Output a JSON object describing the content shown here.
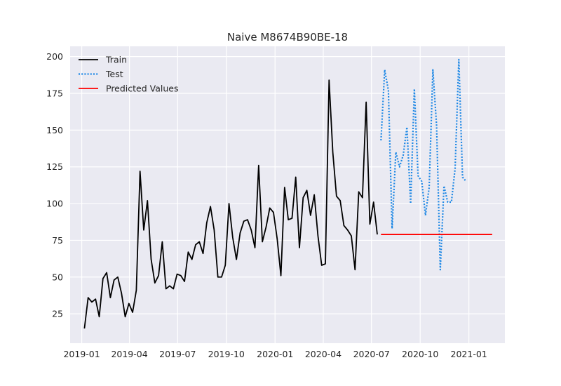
{
  "chart_data": {
    "type": "line",
    "title": "Naive M8674B90BE-18",
    "xlabel": "",
    "ylabel": "",
    "grid": true,
    "legend_position": "top-left",
    "xlim": [
      "2018-12-10",
      "2021-03-10"
    ],
    "ylim": [
      5,
      207
    ],
    "x_ticks": [
      "2019-01-01",
      "2019-04-01",
      "2019-07-01",
      "2019-10-01",
      "2020-01-01",
      "2020-04-01",
      "2020-07-01",
      "2020-10-01",
      "2021-01-01"
    ],
    "x_tick_labels": [
      "2019-01",
      "2019-04",
      "2019-07",
      "2019-10",
      "2020-01",
      "2020-04",
      "2020-07",
      "2020-10",
      "2021-01"
    ],
    "y_ticks": [
      25,
      50,
      75,
      100,
      125,
      150,
      175,
      200
    ],
    "y_tick_labels": [
      "25",
      "50",
      "75",
      "100",
      "125",
      "150",
      "175",
      "200"
    ],
    "series": [
      {
        "name": "Train",
        "color": "#000000",
        "style": "solid",
        "x": [
          "2019-01-06",
          "2019-01-13",
          "2019-01-20",
          "2019-01-27",
          "2019-02-03",
          "2019-02-10",
          "2019-02-17",
          "2019-02-24",
          "2019-03-03",
          "2019-03-10",
          "2019-03-17",
          "2019-03-24",
          "2019-03-31",
          "2019-04-07",
          "2019-04-14",
          "2019-04-21",
          "2019-04-28",
          "2019-05-05",
          "2019-05-12",
          "2019-05-19",
          "2019-05-26",
          "2019-06-02",
          "2019-06-09",
          "2019-06-16",
          "2019-06-23",
          "2019-06-30",
          "2019-07-07",
          "2019-07-14",
          "2019-07-21",
          "2019-07-28",
          "2019-08-04",
          "2019-08-11",
          "2019-08-18",
          "2019-08-25",
          "2019-09-01",
          "2019-09-08",
          "2019-09-15",
          "2019-09-22",
          "2019-09-29",
          "2019-10-06",
          "2019-10-13",
          "2019-10-20",
          "2019-10-27",
          "2019-11-03",
          "2019-11-10",
          "2019-11-17",
          "2019-11-24",
          "2019-12-01",
          "2019-12-08",
          "2019-12-15",
          "2019-12-22",
          "2019-12-29",
          "2020-01-05",
          "2020-01-12",
          "2020-01-19",
          "2020-01-26",
          "2020-02-02",
          "2020-02-09",
          "2020-02-16",
          "2020-02-23",
          "2020-03-01",
          "2020-03-08",
          "2020-03-15",
          "2020-03-22",
          "2020-03-29",
          "2020-04-05",
          "2020-04-12",
          "2020-04-19",
          "2020-04-26",
          "2020-05-03",
          "2020-05-10",
          "2020-05-17",
          "2020-05-24",
          "2020-05-31",
          "2020-06-07",
          "2020-06-14",
          "2020-06-21",
          "2020-06-28",
          "2020-07-05",
          "2020-07-12"
        ],
        "y": [
          15,
          36,
          33,
          35,
          23,
          49,
          53,
          36,
          48,
          50,
          39,
          23,
          32,
          26,
          41,
          122,
          82,
          102,
          62,
          46,
          51,
          74,
          42,
          44,
          42,
          52,
          51,
          47,
          67,
          62,
          72,
          74,
          66,
          87,
          98,
          82,
          50,
          50,
          58,
          100,
          77,
          62,
          80,
          88,
          89,
          82,
          70,
          126,
          74,
          84,
          97,
          94,
          76,
          51,
          111,
          89,
          90,
          118,
          70,
          104,
          109,
          92,
          106,
          78,
          58,
          59,
          184,
          135,
          105,
          102,
          85,
          82,
          78,
          55,
          108,
          104,
          169,
          86,
          101,
          79
        ]
      },
      {
        "name": "Test",
        "color": "#1e88e5",
        "style": "dotted",
        "x": [
          "2020-07-19",
          "2020-07-26",
          "2020-08-02",
          "2020-08-09",
          "2020-08-16",
          "2020-08-23",
          "2020-08-30",
          "2020-09-06",
          "2020-09-13",
          "2020-09-20",
          "2020-09-27",
          "2020-10-04",
          "2020-10-11",
          "2020-10-18",
          "2020-10-25",
          "2020-11-01",
          "2020-11-08",
          "2020-11-15",
          "2020-11-22",
          "2020-11-29",
          "2020-12-06",
          "2020-12-13",
          "2020-12-20",
          "2020-12-27"
        ],
        "y": [
          143,
          191,
          177,
          83,
          135,
          125,
          133,
          152,
          100,
          178,
          119,
          115,
          92,
          111,
          191,
          153,
          55,
          112,
          101,
          101,
          124,
          198,
          118,
          115
        ]
      },
      {
        "name": "Predicted Values",
        "color": "#ff0000",
        "style": "solid",
        "x": [
          "2020-07-19",
          "2021-02-14"
        ],
        "y": [
          79,
          79
        ]
      }
    ]
  }
}
